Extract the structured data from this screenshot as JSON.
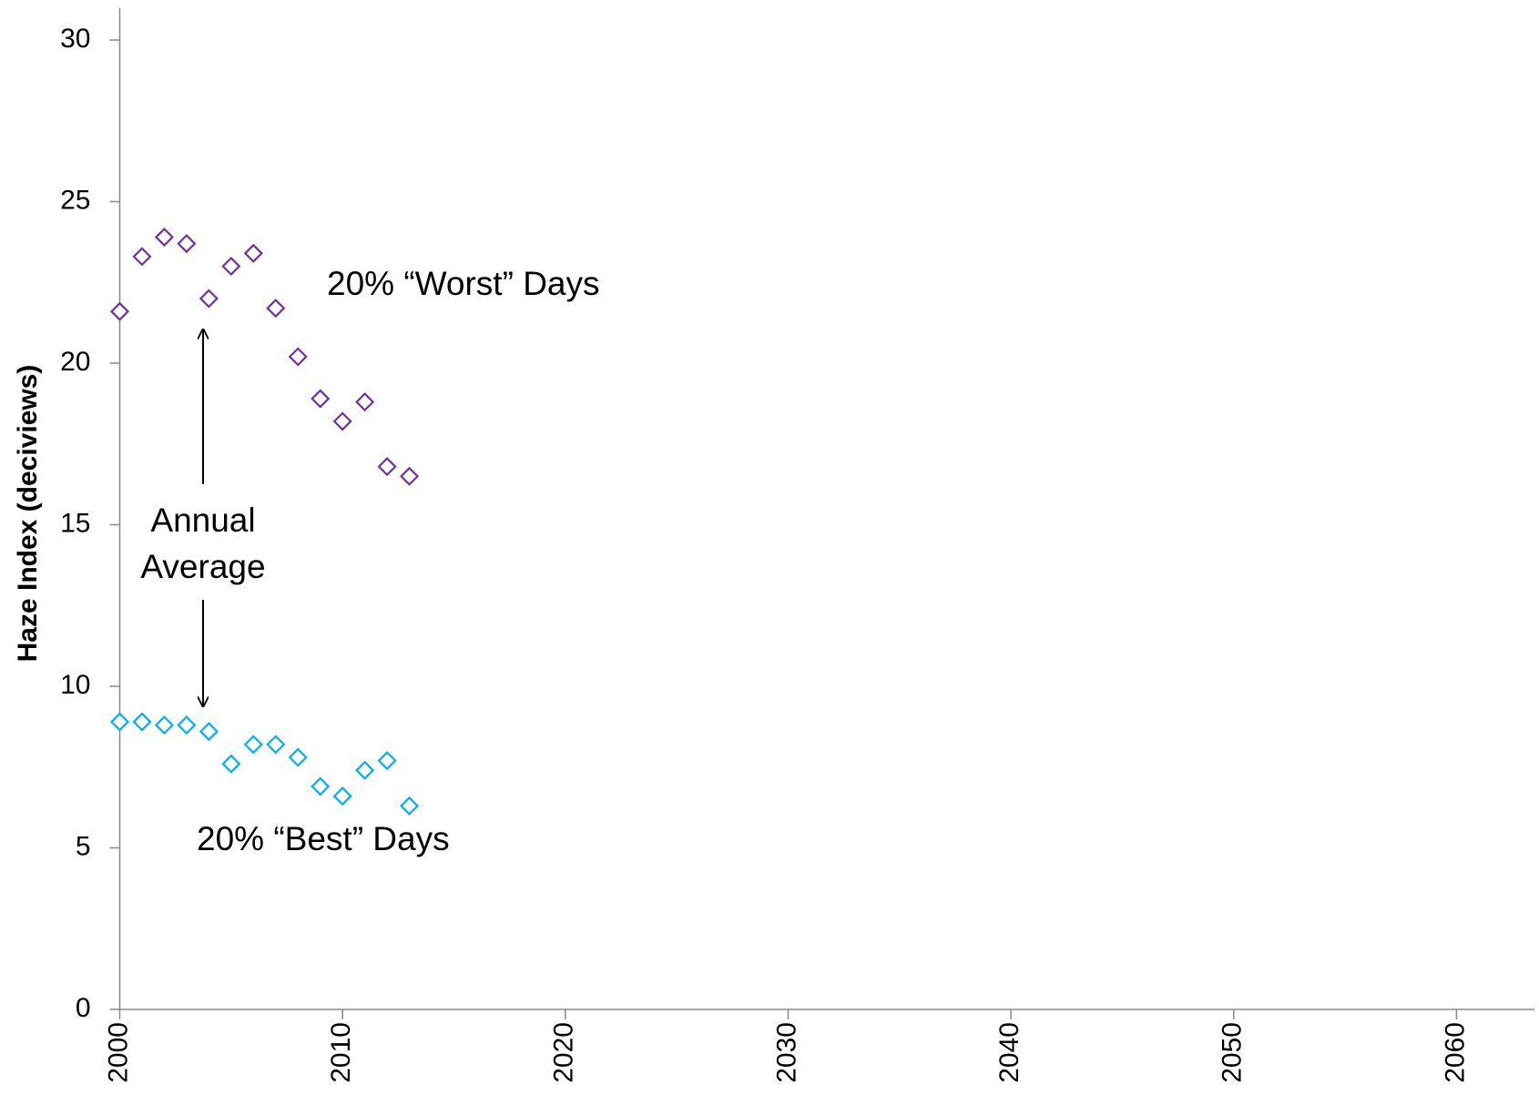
{
  "chart_data": {
    "type": "scatter",
    "y_label": "Haze Index (deciviews)",
    "x": [
      2000,
      2001,
      2002,
      2003,
      2004,
      2005,
      2006,
      2007,
      2008,
      2009,
      2010,
      2011,
      2012,
      2013
    ],
    "series": [
      {
        "name": "20% “Worst” Days",
        "color": "#7030a0",
        "values": [
          21.6,
          23.3,
          23.9,
          23.7,
          22.0,
          23.0,
          23.4,
          21.7,
          20.2,
          18.9,
          18.2,
          18.8,
          16.8,
          16.5
        ]
      },
      {
        "name": "20% “Best” Days",
        "color": "#00b0f0",
        "values": [
          8.9,
          8.9,
          8.8,
          8.8,
          8.6,
          7.6,
          8.2,
          8.2,
          7.8,
          6.9,
          6.6,
          7.4,
          7.7,
          6.3
        ]
      }
    ],
    "annotations": [
      "Annual",
      "Average"
    ],
    "xlim": [
      2000,
      2063.5
    ],
    "xticks": [
      2000,
      2010,
      2020,
      2030,
      2040,
      2050,
      2060
    ],
    "ylim": [
      0,
      31
    ],
    "yticks": [
      0,
      5,
      10,
      15,
      20,
      25,
      30
    ],
    "grid": false
  }
}
